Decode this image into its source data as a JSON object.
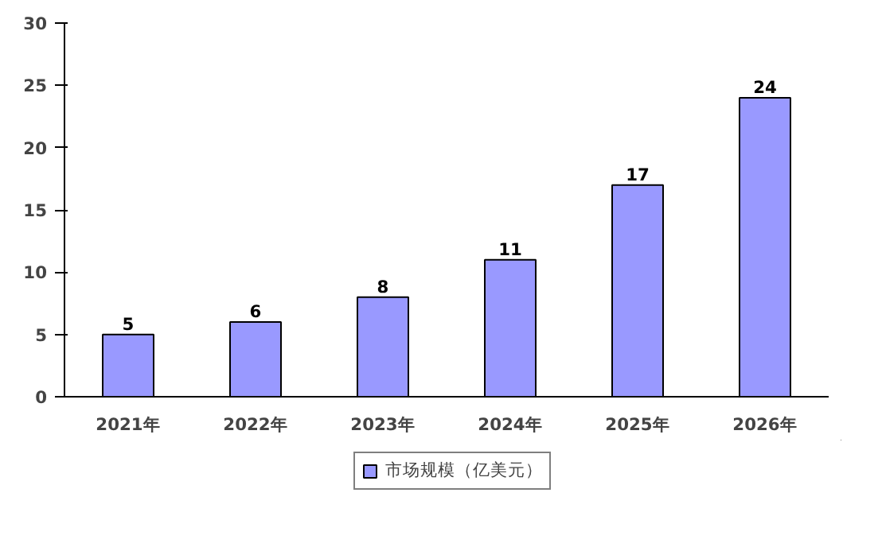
{
  "chart_data": {
    "type": "bar",
    "categories": [
      "2021年",
      "2022年",
      "2023年",
      "2024年",
      "2025年",
      "2026年"
    ],
    "series": [
      {
        "name": "市场规模（亿美元）",
        "color": "#9999ff",
        "values": [
          5,
          6,
          8,
          11,
          17,
          24
        ]
      }
    ],
    "ylim": [
      0,
      30
    ],
    "yticks": [
      0,
      5,
      10,
      15,
      20,
      25,
      30
    ],
    "data_labels": true,
    "grid": false,
    "legend": "bottom"
  }
}
